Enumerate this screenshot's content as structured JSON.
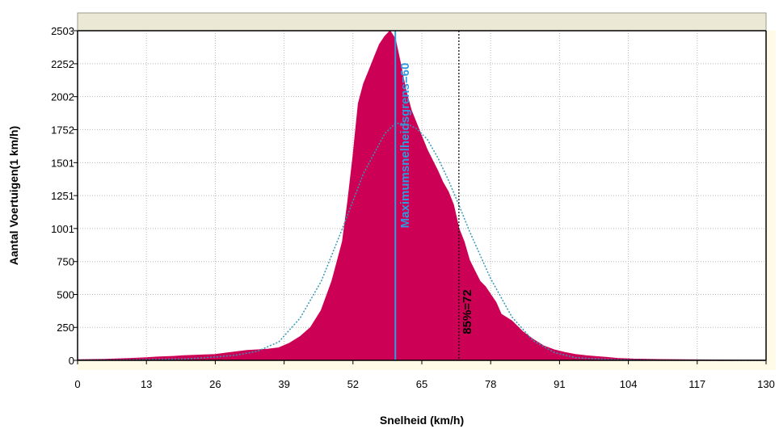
{
  "chart_data": {
    "type": "area",
    "xlabel": "Snelheid (km/h)",
    "ylabel": "Aantal Voertuigen(1 km/h)",
    "xlim": [
      0,
      130
    ],
    "ylim": [
      0,
      2503
    ],
    "xticks": [
      0,
      13,
      26,
      39,
      52,
      65,
      78,
      91,
      104,
      117,
      130
    ],
    "xtick_labels": [
      "0",
      "13",
      "26",
      "39",
      "52",
      "65",
      "78",
      "91",
      "104",
      "117",
      "130"
    ],
    "yticks": [
      0,
      250,
      500,
      750,
      1001,
      1251,
      1501,
      1752,
      2002,
      2252,
      2503
    ],
    "ytick_labels": [
      "0",
      "250",
      "500",
      "750",
      "1001",
      "1251",
      "1501",
      "1752",
      "2002",
      "2252",
      "2503"
    ],
    "grid": true,
    "series": [
      {
        "kind": "histogram-area",
        "color": "#cc0055",
        "x": [
          0,
          5,
          10,
          13,
          15,
          18,
          20,
          23,
          26,
          28,
          30,
          32,
          34,
          36,
          38,
          40,
          42,
          44,
          46,
          48,
          50,
          51,
          52,
          53,
          54,
          55,
          56,
          57,
          58,
          59,
          60,
          61,
          62,
          63,
          64,
          65,
          66,
          67,
          68,
          69,
          70,
          71,
          72,
          73,
          74,
          75,
          76,
          77,
          78,
          79,
          80,
          82,
          84,
          86,
          88,
          90,
          92,
          94,
          96,
          98,
          100,
          102,
          105,
          110,
          115,
          120,
          125,
          130
        ],
        "values": [
          5,
          8,
          15,
          20,
          25,
          30,
          35,
          40,
          45,
          55,
          65,
          75,
          80,
          85,
          95,
          130,
          180,
          250,
          380,
          600,
          900,
          1200,
          1550,
          1950,
          2100,
          2200,
          2300,
          2400,
          2460,
          2503,
          2440,
          2250,
          2050,
          1900,
          1800,
          1700,
          1600,
          1520,
          1440,
          1350,
          1280,
          1180,
          1001,
          900,
          760,
          680,
          600,
          560,
          500,
          440,
          350,
          300,
          220,
          160,
          110,
          80,
          60,
          45,
          35,
          28,
          22,
          15,
          10,
          6,
          4,
          3,
          2,
          1
        ]
      },
      {
        "kind": "normal-fit",
        "style": "dotted",
        "color": "#3399bb",
        "x": [
          0,
          10,
          20,
          26,
          30,
          34,
          38,
          42,
          46,
          50,
          54,
          58,
          60,
          62,
          64,
          66,
          68,
          70,
          72,
          74,
          78,
          82,
          86,
          90,
          94,
          100,
          110,
          120,
          130
        ],
        "values": [
          2,
          4,
          10,
          25,
          40,
          70,
          140,
          320,
          600,
          1000,
          1420,
          1720,
          1800,
          1800,
          1760,
          1680,
          1540,
          1370,
          1180,
          980,
          620,
          330,
          150,
          60,
          20,
          6,
          2,
          1,
          0
        ]
      }
    ],
    "annotations": [
      {
        "label": "Maximumsnelheidsgrens=60",
        "x": 60,
        "color": "#3399dd",
        "style": "solid"
      },
      {
        "label": "85%=72",
        "x": 72,
        "color": "#000000",
        "style": "dotted"
      }
    ]
  }
}
